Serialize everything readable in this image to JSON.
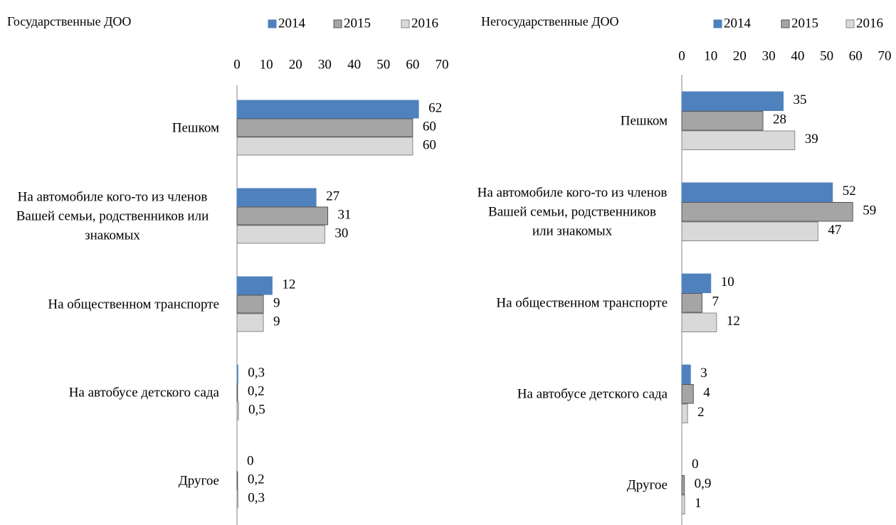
{
  "chart_data": [
    {
      "type": "hbar",
      "title": "Государственные ДОО",
      "categories": [
        "Пешком",
        "На автомобиле кого-то из членов Вашей семьи, родственников или знакомых",
        "На общественном транспорте",
        "На автобусе детского сада",
        "Другое"
      ],
      "series": [
        {
          "name": "2014",
          "color": "#4f81bd",
          "values": [
            62,
            27,
            12,
            0.3,
            0
          ],
          "value_labels": [
            "62",
            "27",
            "12",
            "0,3",
            "0"
          ]
        },
        {
          "name": "2015",
          "color": "#a5a5a5",
          "values": [
            60,
            31,
            9,
            0.2,
            0.2
          ],
          "value_labels": [
            "60",
            "31",
            "9",
            "0,2",
            "0,2"
          ]
        },
        {
          "name": "2016",
          "color": "#d9d9d9",
          "values": [
            60,
            30,
            9,
            0.5,
            0.3
          ],
          "value_labels": [
            "60",
            "30",
            "9",
            "0,5",
            "0,3"
          ]
        }
      ],
      "xlim": [
        0,
        70
      ],
      "xticks": [
        0,
        10,
        20,
        30,
        40,
        50,
        60,
        70
      ]
    },
    {
      "type": "hbar",
      "title": "Негосударственные ДОО",
      "categories": [
        "Пешком",
        "На автомобиле кого-то из членов Вашей семьи, родственников или знакомых",
        "На общественном транспорте",
        "На автобусе детского сада",
        "Другое"
      ],
      "series": [
        {
          "name": "2014",
          "color": "#4f81bd",
          "values": [
            35,
            52,
            10,
            3,
            0
          ],
          "value_labels": [
            "35",
            "52",
            "10",
            "3",
            "0"
          ]
        },
        {
          "name": "2015",
          "color": "#a5a5a5",
          "values": [
            28,
            59,
            7,
            4,
            0.9
          ],
          "value_labels": [
            "28",
            "59",
            "7",
            "4",
            "0,9"
          ]
        },
        {
          "name": "2016",
          "color": "#d9d9d9",
          "values": [
            39,
            47,
            12,
            2,
            1
          ],
          "value_labels": [
            "39",
            "47",
            "12",
            "2",
            "1"
          ]
        }
      ],
      "xlim": [
        0,
        70
      ],
      "xticks": [
        0,
        10,
        20,
        30,
        40,
        50,
        60,
        70
      ]
    }
  ]
}
